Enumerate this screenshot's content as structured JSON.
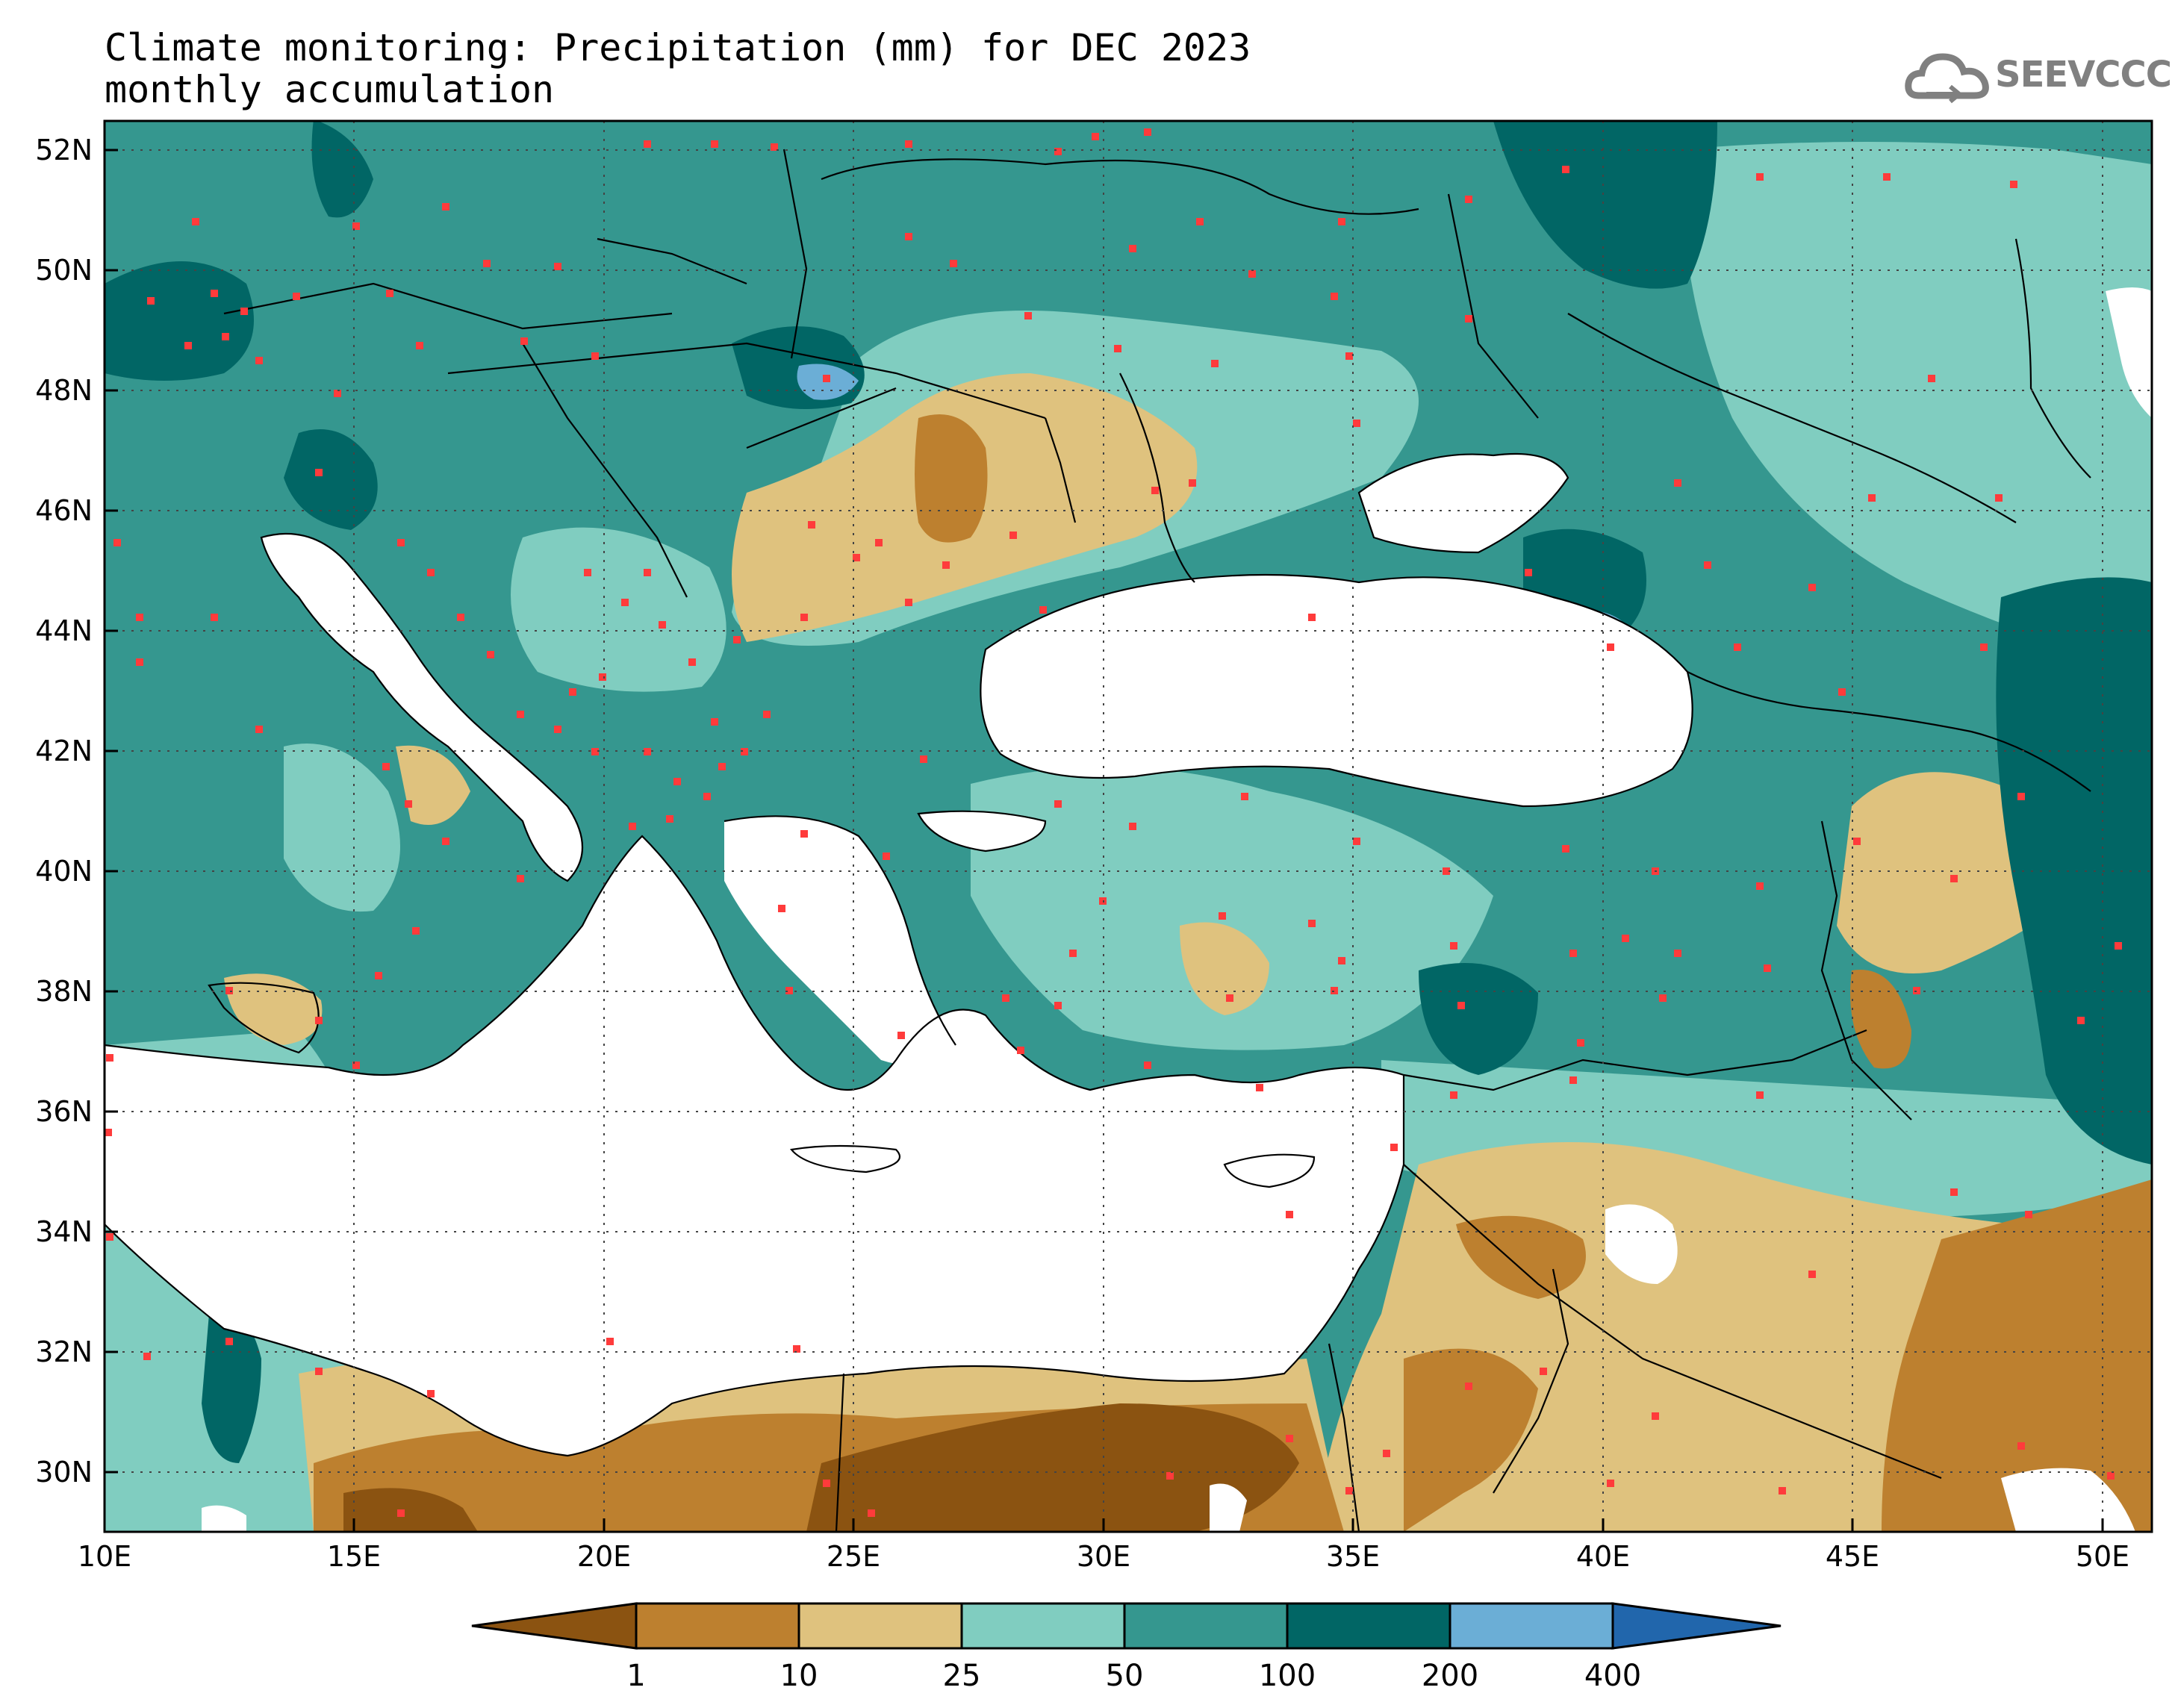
{
  "title": {
    "line1": "Climate monitoring: Precipitation (mm) for DEC 2023",
    "line2": "monthly accumulation"
  },
  "logo": {
    "text": "SEEVCCC",
    "icon": "cloud-icon",
    "color": "#808080"
  },
  "map": {
    "lon_range": [
      10,
      51
    ],
    "lat_range": [
      29,
      52.5
    ],
    "x_ticks": [
      "10E",
      "15E",
      "20E",
      "25E",
      "30E",
      "35E",
      "40E",
      "45E",
      "50E"
    ],
    "y_ticks": [
      "30N",
      "32N",
      "34N",
      "36N",
      "38N",
      "40N",
      "42N",
      "44N",
      "46N",
      "48N",
      "50N",
      "52N"
    ],
    "grid": "dotted"
  },
  "colorbar": {
    "labels": [
      "1",
      "10",
      "25",
      "50",
      "100",
      "200",
      "400"
    ],
    "colors": [
      "#8b5311",
      "#bd802f",
      "#dfc27e",
      "#80cdc0",
      "#35978f",
      "#016665",
      "#6baed6",
      "#2166ac"
    ]
  }
}
